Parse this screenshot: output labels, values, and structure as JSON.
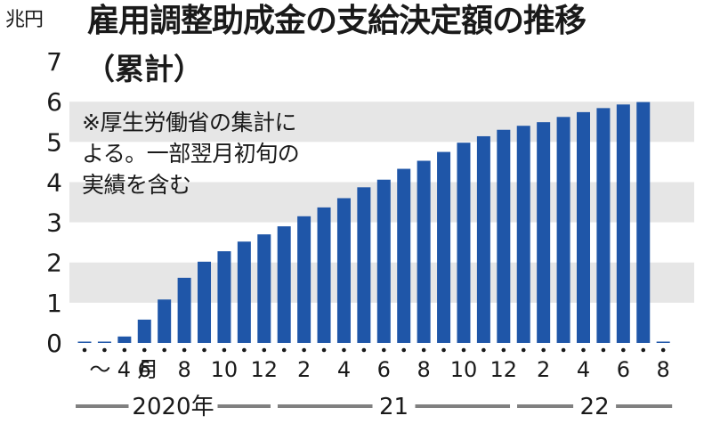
{
  "unit_label": "兆円",
  "title": "雇用調整助成金の支給決定額の推移",
  "subtitle": "（累計）",
  "note": {
    "line1": "※厚生労働省の集計に",
    "line2": "よる。一部翌月初旬の",
    "line3": "実績を含む"
  },
  "colors": {
    "bar": "#1f56a8",
    "band": "#e6e6e6",
    "dot": "#1a1a1a",
    "year_line": "#808080"
  },
  "chart_data": {
    "type": "bar",
    "title": "雇用調整助成金の支給決定額の推移",
    "subtitle": "（累計）",
    "ylabel": "兆円",
    "ylim": [
      0,
      7
    ],
    "yticks": [
      0,
      1,
      2,
      3,
      4,
      5,
      6,
      7
    ],
    "grid": "alternating horizontal bands",
    "categories": [
      "2020-03",
      "2020-04",
      "2020-05",
      "2020-06",
      "2020-07",
      "2020-08",
      "2020-09",
      "2020-10",
      "2020-11",
      "2020-12",
      "2021-01",
      "2021-02",
      "2021-03",
      "2021-04",
      "2021-05",
      "2021-06",
      "2021-07",
      "2021-08",
      "2021-09",
      "2021-10",
      "2021-11",
      "2021-12",
      "2022-01",
      "2022-02",
      "2022-03",
      "2022-04",
      "2022-05",
      "2022-06",
      "2022-07",
      "2022-08"
    ],
    "values": [
      0.0,
      0.03,
      0.16,
      0.58,
      1.08,
      1.62,
      2.02,
      2.28,
      2.52,
      2.7,
      2.9,
      3.15,
      3.37,
      3.6,
      3.87,
      4.06,
      4.33,
      4.53,
      4.75,
      4.98,
      5.14,
      5.3,
      5.4,
      5.49,
      5.62,
      5.74,
      5.84,
      5.93,
      5.99,
      0.0
    ],
    "x_tick_labels": [
      {
        "index": 1,
        "label": "〜4月"
      },
      {
        "index": 3,
        "label": "6"
      },
      {
        "index": 5,
        "label": "8"
      },
      {
        "index": 7,
        "label": "10"
      },
      {
        "index": 9,
        "label": "12"
      },
      {
        "index": 11,
        "label": "2"
      },
      {
        "index": 13,
        "label": "4"
      },
      {
        "index": 15,
        "label": "6"
      },
      {
        "index": 17,
        "label": "8"
      },
      {
        "index": 19,
        "label": "10"
      },
      {
        "index": 21,
        "label": "12"
      },
      {
        "index": 23,
        "label": "2"
      },
      {
        "index": 25,
        "label": "4"
      },
      {
        "index": 27,
        "label": "6"
      },
      {
        "index": 29,
        "label": "8"
      }
    ],
    "year_groups": [
      {
        "label": "2020年",
        "start": 0,
        "end": 9
      },
      {
        "label": "21",
        "start": 10,
        "end": 21
      },
      {
        "label": "22",
        "start": 22,
        "end": 29
      }
    ]
  }
}
